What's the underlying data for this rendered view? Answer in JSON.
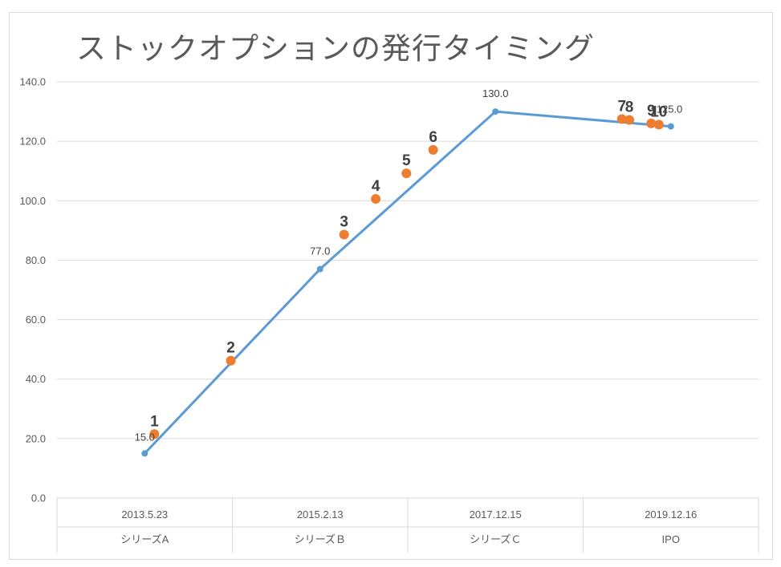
{
  "chart_data": {
    "type": "line",
    "title": "ストックオプションの発行タイミング",
    "ylim": [
      0,
      140
    ],
    "yticks": [
      "0.0",
      "20.0",
      "40.0",
      "60.0",
      "80.0",
      "100.0",
      "120.0",
      "140.0"
    ],
    "grid": true,
    "categories": [
      {
        "date": "2013.5.23",
        "round": "シリーズA"
      },
      {
        "date": "2015.2.13",
        "round": "シリーズＢ"
      },
      {
        "date": "2017.12.15",
        "round": "シリーズＣ"
      },
      {
        "date": "2019.12.16",
        "round": "IPO"
      }
    ],
    "series": [
      {
        "color": "#5b9bd5",
        "points": [
          {
            "date": "2013.5.23",
            "y": 15.0,
            "label": "15.0"
          },
          {
            "date": "2015.2.13",
            "y": 77.0,
            "label": "77.0"
          },
          {
            "date": "2017.12.15",
            "y": 130.0,
            "label": "130.0"
          },
          {
            "date": "2019.12.16",
            "y": 125.0,
            "label": "125.0"
          }
        ]
      },
      {
        "color": "#ed7d31",
        "points": [
          {
            "date": "2013.6.27",
            "y": 21.5,
            "label": "1"
          },
          {
            "date": "2014.3.29",
            "y": 46.2,
            "label": "2"
          },
          {
            "date": "2015.7.5",
            "y": 88.6,
            "label": "3"
          },
          {
            "date": "2016.1.8",
            "y": 100.6,
            "label": "4"
          },
          {
            "date": "2016.7.7",
            "y": 109.2,
            "label": "5"
          },
          {
            "date": "2016.12.12",
            "y": 117.1,
            "label": "6"
          },
          {
            "date": "2019.5.26",
            "y": 127.5,
            "label": "7"
          },
          {
            "date": "2019.6.26",
            "y": 127.2,
            "label": "8"
          },
          {
            "date": "2019.9.25",
            "y": 126.0,
            "label": "9"
          },
          {
            "date": "2019.10.27",
            "y": 125.6,
            "label": "10"
          }
        ]
      }
    ]
  }
}
